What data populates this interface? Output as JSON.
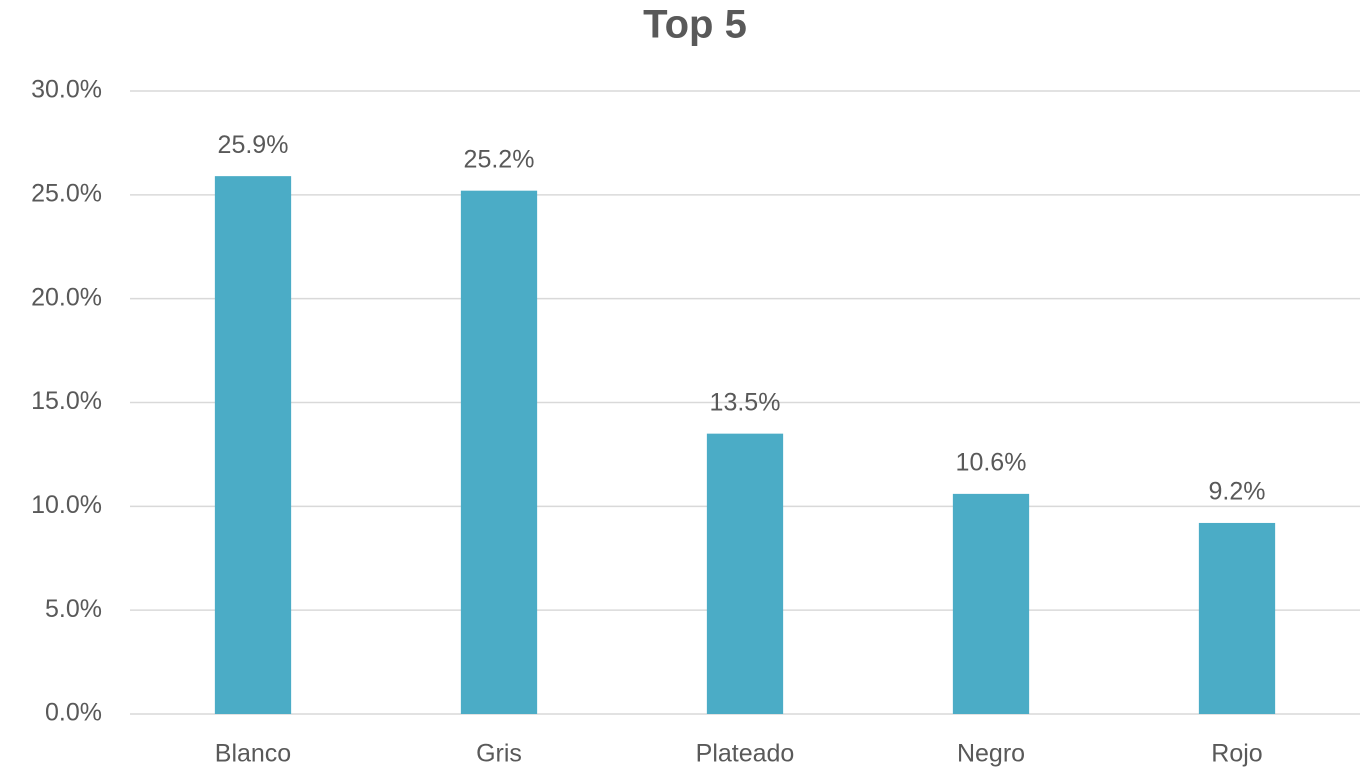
{
  "chart_data": {
    "type": "bar",
    "title": "Top 5",
    "categories": [
      "Blanco",
      "Gris",
      "Plateado",
      "Negro",
      "Rojo"
    ],
    "values": [
      25.9,
      25.2,
      13.5,
      10.6,
      9.2
    ],
    "value_labels": [
      "25.9%",
      "25.2%",
      "13.5%",
      "10.6%",
      "9.2%"
    ],
    "color": "#4bacc6",
    "ylim": [
      0,
      30
    ],
    "yticks": [
      {
        "value": 0,
        "label": "0.0%"
      },
      {
        "value": 5,
        "label": "5.0%"
      },
      {
        "value": 10,
        "label": "10.0%"
      },
      {
        "value": 15,
        "label": "15.0%"
      },
      {
        "value": 20,
        "label": "20.0%"
      },
      {
        "value": 25,
        "label": "25.0%"
      },
      {
        "value": 30,
        "label": "30.0%"
      }
    ],
    "grid": true
  }
}
